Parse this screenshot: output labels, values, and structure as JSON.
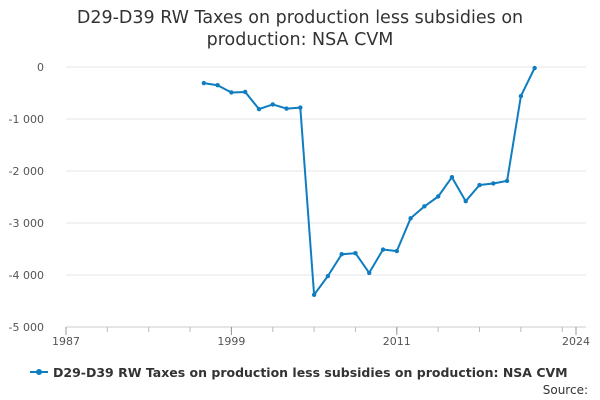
{
  "chart_data": {
    "type": "line",
    "title_lines": [
      "D29-D39 RW Taxes on production less subsidies on",
      "production: NSA CVM"
    ],
    "xlabel": "",
    "ylabel": "",
    "x_ticks": [
      1987,
      1999,
      2011,
      2024
    ],
    "x_tick_labels": [
      "1987",
      "1999",
      "2011",
      "2024"
    ],
    "xlim": [
      1987,
      2024
    ],
    "y_ticks": [
      0,
      -1000,
      -2000,
      -3000,
      -4000,
      -5000
    ],
    "y_tick_labels": [
      "0",
      "-1 000",
      "-2 000",
      "-3 000",
      "-4 000",
      "-5 000"
    ],
    "ylim": [
      -5000,
      0
    ],
    "grid": true,
    "legend_position": "bottom",
    "series": [
      {
        "name": "D29-D39 RW Taxes on production less subsidies on production: NSA CVM",
        "color": "#0f7dc0",
        "x": [
          1997,
          1998,
          1999,
          2000,
          2001,
          2002,
          2003,
          2004,
          2005,
          2006,
          2007,
          2008,
          2009,
          2010,
          2011,
          2012,
          2013,
          2014,
          2015,
          2016,
          2017,
          2018,
          2019,
          2020,
          2021
        ],
        "values": [
          -310,
          -350,
          -490,
          -480,
          -810,
          -720,
          -800,
          -780,
          -4380,
          -4020,
          -3600,
          -3580,
          -3960,
          -3510,
          -3540,
          -2910,
          -2680,
          -2490,
          -2120,
          -2580,
          -2270,
          -2240,
          -2190,
          -560,
          -20
        ]
      }
    ]
  },
  "legend": {
    "label": "D29-D39 RW Taxes on production less subsidies on production: NSA CVM"
  },
  "source": {
    "label": "Source:"
  }
}
